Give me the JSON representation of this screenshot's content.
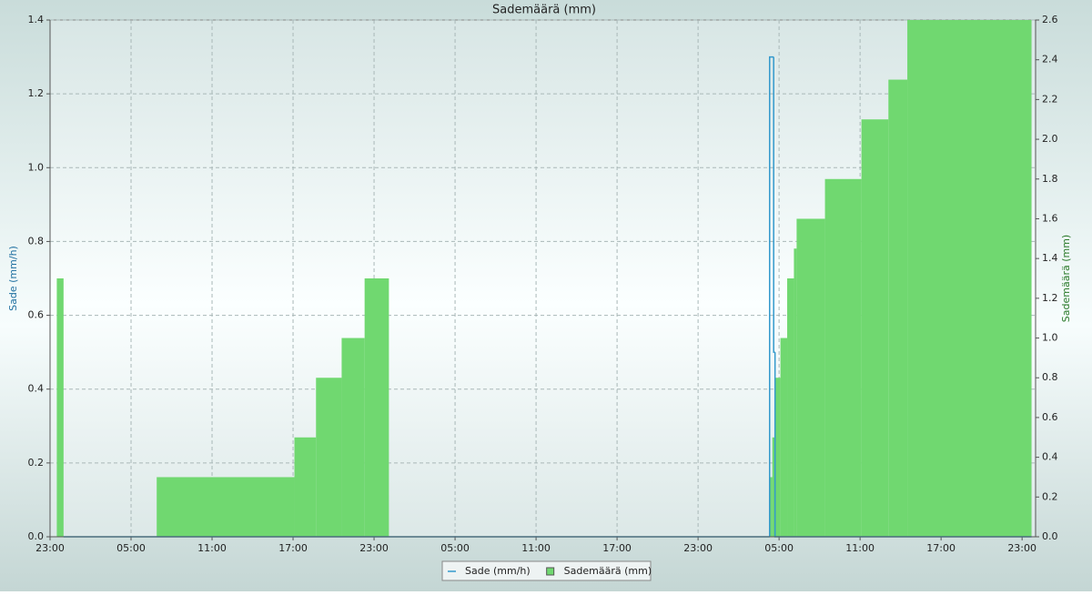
{
  "chart_data": {
    "type": "step",
    "title": "Sademäärä (mm)",
    "y_label": "Sade (mm/h)",
    "y2_label": "Sademäärä (mm)",
    "grid": true,
    "legend": "bottom",
    "xlim": [
      0,
      73
    ],
    "xticks": [
      {
        "value": 0,
        "label": "23:00"
      },
      {
        "value": 6,
        "label": "05:00"
      },
      {
        "value": 12,
        "label": "11:00"
      },
      {
        "value": 18,
        "label": "17:00"
      },
      {
        "value": 24,
        "label": "23:00"
      },
      {
        "value": 30,
        "label": "05:00"
      },
      {
        "value": 36,
        "label": "11:00"
      },
      {
        "value": 42,
        "label": "17:00"
      },
      {
        "value": 48,
        "label": "23:00"
      },
      {
        "value": 54,
        "label": "05:00"
      },
      {
        "value": 60,
        "label": "11:00"
      },
      {
        "value": 66,
        "label": "17:00"
      },
      {
        "value": 72,
        "label": "23:00"
      }
    ],
    "ylim": [
      0,
      1.4
    ],
    "yticks": [
      {
        "value": 0,
        "label": "0.0"
      },
      0.2,
      0.4,
      0.6,
      0.8,
      {
        "value": 1,
        "label": "1.0"
      },
      1.2,
      1.4
    ],
    "y2lim": [
      0,
      2.6
    ],
    "y2ticks": [
      {
        "value": 0,
        "label": "0.0"
      },
      0.2,
      0.4,
      0.6,
      0.8,
      {
        "value": 1,
        "label": "1.0"
      },
      1.2,
      1.4,
      1.6,
      1.8,
      {
        "value": 2,
        "label": "2.0"
      },
      2.2,
      2.4,
      2.6
    ],
    "series": [
      {
        "name": "Sade (mm/h)",
        "color": "#3399cc",
        "bins": [
          1.0,
          53.3,
          53.6,
          53.7,
          72.7
        ],
        "values": [
          0,
          1.3,
          0.5,
          0
        ]
      },
      {
        "name": "Sademäärä (mm)",
        "color": "#70d870",
        "axis": "y2",
        "bins": [
          0.5,
          1,
          7.9,
          18.1,
          19.7,
          21.6,
          23.3,
          25.1,
          53.3,
          53.5,
          53.7,
          54.1,
          54.6,
          55.1,
          55.3,
          57.4,
          60.1,
          62.1,
          63.5,
          72.7
        ],
        "values": [
          1.3,
          0,
          0.3,
          0.5,
          0.8,
          1.0,
          1.3,
          0,
          0.3,
          0.5,
          0.8,
          1.0,
          1.3,
          1.45,
          1.6,
          1.8,
          2.1,
          2.3,
          2.6
        ]
      }
    ]
  }
}
